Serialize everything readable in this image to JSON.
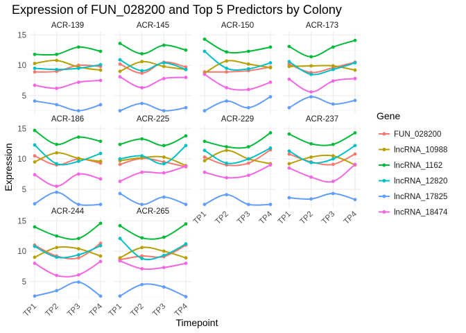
{
  "chart_data": {
    "type": "line",
    "title": "Expression of FUN_028200 and Top 5 Predictors by Colony",
    "xlabel": "Timepoint",
    "ylabel": "Expression",
    "categories": [
      "TP1",
      "TP2",
      "TP3",
      "TP4"
    ],
    "ylim": [
      2,
      15.5
    ],
    "yticks": [
      5,
      10,
      15
    ],
    "grid": true,
    "legend": {
      "title": "Gene",
      "position": "right"
    },
    "genes": [
      "FUN_028200",
      "lncRNA_10988",
      "lncRNA_1162",
      "lncRNA_12820",
      "lncRNA_17825",
      "lncRNA_18474"
    ],
    "colors": [
      "#F8766D",
      "#B79F00",
      "#00BA38",
      "#00BFC4",
      "#619CFF",
      "#F564E3"
    ],
    "panels": [
      {
        "name": "ACR-139",
        "series": [
          [
            8.9,
            9.0,
            10.0,
            9.8
          ],
          [
            10.3,
            10.8,
            9.7,
            9.2
          ],
          [
            11.8,
            11.8,
            13.0,
            12.3
          ],
          [
            9.5,
            9.3,
            9.5,
            10.1
          ],
          [
            4.1,
            3.5,
            2.5,
            3.5
          ],
          [
            6.7,
            6.2,
            7.2,
            7.5
          ]
        ]
      },
      {
        "name": "ACR-145",
        "series": [
          [
            10.2,
            8.7,
            10.5,
            9.7
          ],
          [
            9.0,
            10.6,
            9.8,
            9.3
          ],
          [
            13.6,
            11.9,
            13.3,
            12.5
          ],
          [
            10.9,
            9.1,
            10.4,
            9.3
          ],
          [
            2.5,
            3.7,
            2.5,
            3.0
          ],
          [
            8.1,
            6.3,
            7.8,
            8.0
          ]
        ]
      },
      {
        "name": "ACR-150",
        "series": [
          [
            8.9,
            8.9,
            9.1,
            9.7
          ],
          [
            8.7,
            10.7,
            10.2,
            9.6
          ],
          [
            14.3,
            12.2,
            12.3,
            13.0
          ],
          [
            12.3,
            9.5,
            9.4,
            10.4
          ],
          [
            2.5,
            4.1,
            3.0,
            4.8
          ],
          [
            8.5,
            6.3,
            6.0,
            7.2
          ]
        ]
      },
      {
        "name": "ACR-173",
        "series": [
          [
            10.2,
            8.8,
            9.6,
            10.5
          ],
          [
            9.8,
            9.9,
            9.9,
            9.2
          ],
          [
            13.1,
            11.4,
            13.0,
            14.1
          ],
          [
            10.6,
            8.5,
            9.3,
            10.4
          ],
          [
            3.0,
            4.8,
            3.6,
            4.2
          ],
          [
            7.7,
            5.6,
            7.4,
            7.8
          ]
        ]
      },
      {
        "name": "ACR-186",
        "series": [
          [
            10.5,
            9.0,
            10.0,
            9.3
          ],
          [
            9.5,
            11.0,
            10.1,
            9.6
          ],
          [
            14.7,
            12.4,
            13.6,
            12.9
          ],
          [
            12.3,
            9.2,
            9.6,
            10.9
          ],
          [
            2.6,
            4.5,
            2.5,
            2.5
          ],
          [
            7.4,
            5.5,
            7.5,
            6.7
          ]
        ]
      },
      {
        "name": "ACR-225",
        "series": [
          [
            9.1,
            10.1,
            9.5,
            8.7
          ],
          [
            9.7,
            10.2,
            10.3,
            8.9
          ],
          [
            12.4,
            13.3,
            12.2,
            13.8
          ],
          [
            10.0,
            10.5,
            9.2,
            12.2
          ],
          [
            4.3,
            2.5,
            3.7,
            2.5
          ],
          [
            6.3,
            7.8,
            7.7,
            8.8
          ]
        ]
      },
      {
        "name": "ACR-229",
        "series": [
          [
            10.3,
            9.0,
            9.3,
            11.5
          ],
          [
            9.7,
            11.4,
            10.0,
            9.2
          ],
          [
            12.9,
            12.0,
            12.0,
            14.3
          ],
          [
            11.4,
            9.3,
            10.0,
            11.8
          ],
          [
            2.5,
            4.1,
            2.5,
            2.5
          ],
          [
            7.8,
            6.9,
            7.3,
            9.0
          ]
        ]
      },
      {
        "name": "ACR-237",
        "series": [
          [
            10.8,
            9.5,
            9.1,
            10.8
          ],
          [
            9.2,
            10.3,
            10.5,
            9.0
          ],
          [
            14.1,
            12.5,
            12.4,
            14.3
          ],
          [
            11.3,
            9.4,
            10.0,
            12.2
          ],
          [
            3.6,
            3.4,
            4.3,
            3.3
          ],
          [
            8.5,
            7.0,
            6.3,
            9.1
          ]
        ]
      },
      {
        "name": "ACR-244",
        "series": [
          [
            11.0,
            9.2,
            8.9,
            11.3
          ],
          [
            9.0,
            10.6,
            10.4,
            9.2
          ],
          [
            14.0,
            12.5,
            12.1,
            14.6
          ],
          [
            10.8,
            9.0,
            9.4,
            10.9
          ],
          [
            2.6,
            3.5,
            4.9,
            2.6
          ],
          [
            8.0,
            6.0,
            6.1,
            8.3
          ]
        ]
      },
      {
        "name": "ACR-265",
        "series": [
          [
            8.6,
            9.2,
            9.1,
            11.0
          ],
          [
            8.9,
            10.6,
            10.0,
            8.9
          ],
          [
            14.2,
            12.2,
            12.3,
            14.5
          ],
          [
            12.1,
            8.8,
            9.3,
            11.2
          ],
          [
            2.6,
            4.5,
            4.1,
            2.5
          ],
          [
            8.4,
            7.1,
            7.3,
            8.0
          ]
        ]
      }
    ]
  }
}
